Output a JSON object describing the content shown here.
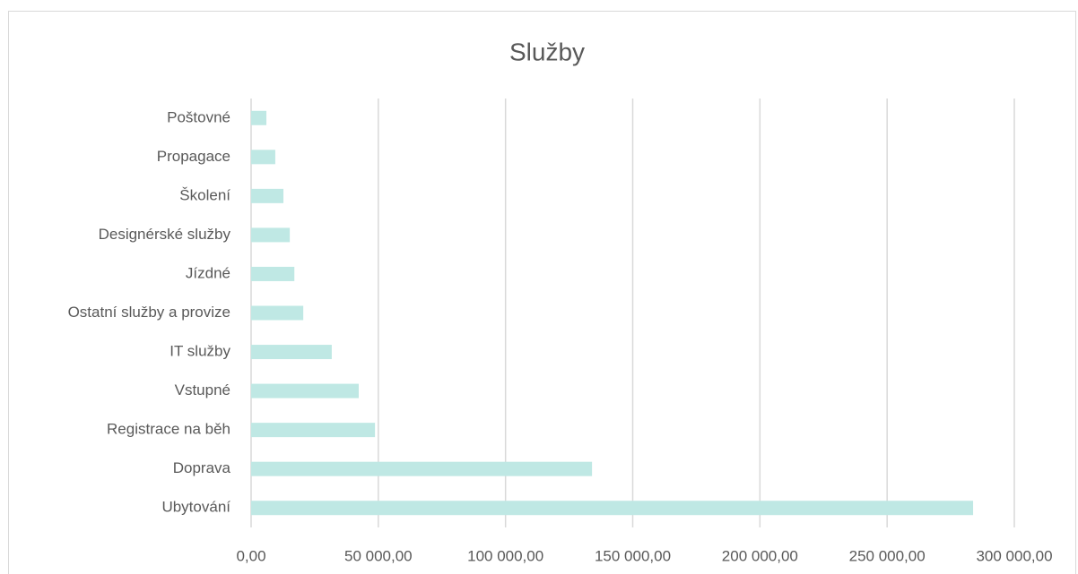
{
  "chart_data": {
    "type": "bar",
    "orientation": "horizontal",
    "title": "Služby",
    "categories": [
      "Poštovné",
      "Propagace",
      "Školení",
      "Designérské služby",
      "Jízdné",
      "Ostatní služby a provize",
      "IT služby",
      "Vstupné",
      "Registrace na běh",
      "Doprava",
      "Ubytování"
    ],
    "values": [
      6000,
      9500,
      12700,
      15200,
      17000,
      20500,
      31700,
      42300,
      48700,
      134000,
      283800
    ],
    "color": "#bfe8e4",
    "xlim": [
      0,
      300000
    ],
    "xticks": [
      {
        "value": 0,
        "label": "0,00"
      },
      {
        "value": 50000,
        "label": "50 000,00"
      },
      {
        "value": 100000,
        "label": "100 000,00"
      },
      {
        "value": 150000,
        "label": "150 000,00"
      },
      {
        "value": 200000,
        "label": "200 000,00"
      },
      {
        "value": 250000,
        "label": "250 000,00"
      },
      {
        "value": 300000,
        "label": "300 000,00"
      }
    ],
    "grid": true
  }
}
